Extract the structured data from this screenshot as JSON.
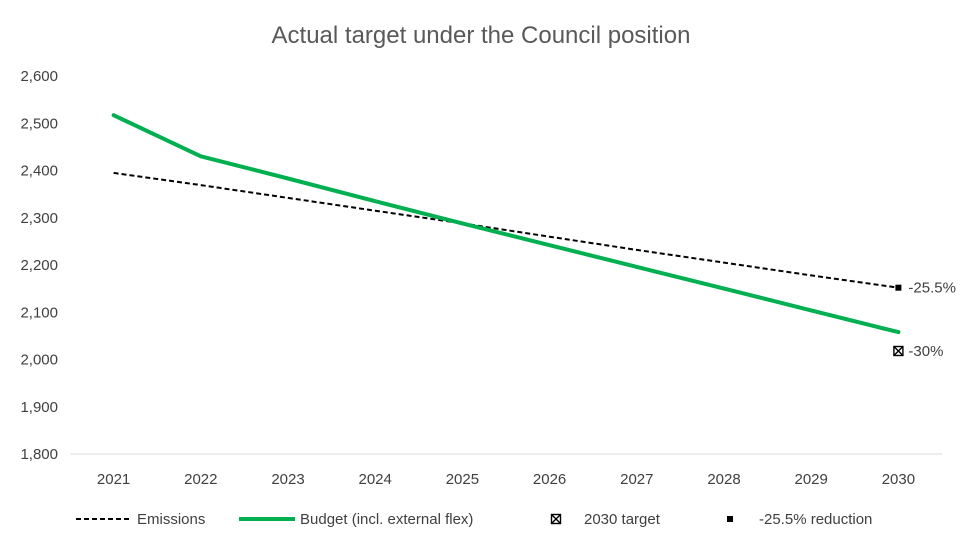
{
  "chart_data": {
    "type": "line",
    "title": "Actual target under the Council position",
    "x": [
      "2021",
      "2022",
      "2023",
      "2024",
      "2025",
      "2026",
      "2027",
      "2028",
      "2029",
      "2030"
    ],
    "ylim": [
      1800,
      2600
    ],
    "yticks": [
      1800,
      1900,
      2000,
      2100,
      2200,
      2300,
      2400,
      2500,
      2600
    ],
    "ytick_labels": [
      "1,800",
      "1,900",
      "2,000",
      "2,100",
      "2,200",
      "2,300",
      "2,400",
      "2,500",
      "2,600"
    ],
    "grid": false,
    "legend_position": "bottom",
    "series": [
      {
        "name": "Emissions",
        "style": "dashed",
        "color": "#000000",
        "values": [
          2395,
          2369,
          2342,
          2315,
          2288,
          2260,
          2232,
          2205,
          2178,
          2152
        ]
      },
      {
        "name": "Budget (incl. external flex)",
        "style": "solid",
        "color": "#00b050",
        "values": [
          2517,
          2430,
          2383,
          2335,
          2288,
          2242,
          2196,
          2150,
          2104,
          2058
        ]
      }
    ],
    "points": [
      {
        "name": "2030 target",
        "marker": "boxed-x",
        "color": "#000000",
        "x": "2030",
        "y": 2018,
        "label": "-30%"
      },
      {
        "name": "-25.5% reduction",
        "marker": "square",
        "color": "#000000",
        "x": "2030",
        "y": 2152,
        "label": "-25.5%"
      }
    ]
  }
}
